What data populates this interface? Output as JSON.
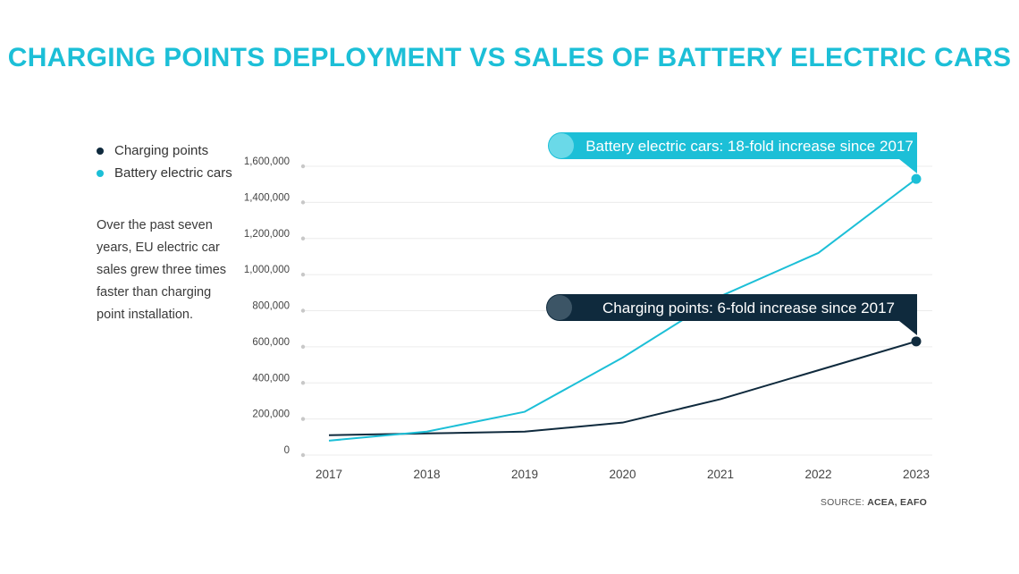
{
  "title": "CHARGING POINTS DEPLOYMENT VS SALES OF BATTERY ELECTRIC CARS",
  "legend": [
    {
      "label": "Charging points",
      "color": "#0f2a3d"
    },
    {
      "label": "Battery electric cars",
      "color": "#1cbfd7"
    }
  ],
  "description": "Over the past seven years, EU electric car sales grew three times faster than charging point installation.",
  "source": {
    "prefix": "SOURCE: ",
    "text": "ACEA, EAFO"
  },
  "chart_data": {
    "type": "line",
    "x": [
      "2017",
      "2018",
      "2019",
      "2020",
      "2021",
      "2022",
      "2023"
    ],
    "ylim": [
      0,
      1600000
    ],
    "yticks": [
      0,
      200000,
      400000,
      600000,
      800000,
      1000000,
      1200000,
      1400000,
      1600000
    ],
    "ytick_labels": [
      "0",
      "200,000",
      "400,000",
      "600,000",
      "800,000",
      "1,000,000",
      "1,200,000",
      "1,400,000",
      "1,600,000"
    ],
    "grid": true,
    "series": [
      {
        "name": "Charging points",
        "color": "#0f2a3d",
        "values": [
          110000,
          120000,
          130000,
          180000,
          310000,
          470000,
          630000
        ],
        "callout": "Charging points: 6-fold increase since 2017"
      },
      {
        "name": "Battery electric cars",
        "color": "#1cbfd7",
        "values": [
          80000,
          130000,
          240000,
          540000,
          880000,
          1120000,
          1530000
        ],
        "callout": "Battery electric cars: 18-fold increase since 2017"
      }
    ]
  }
}
